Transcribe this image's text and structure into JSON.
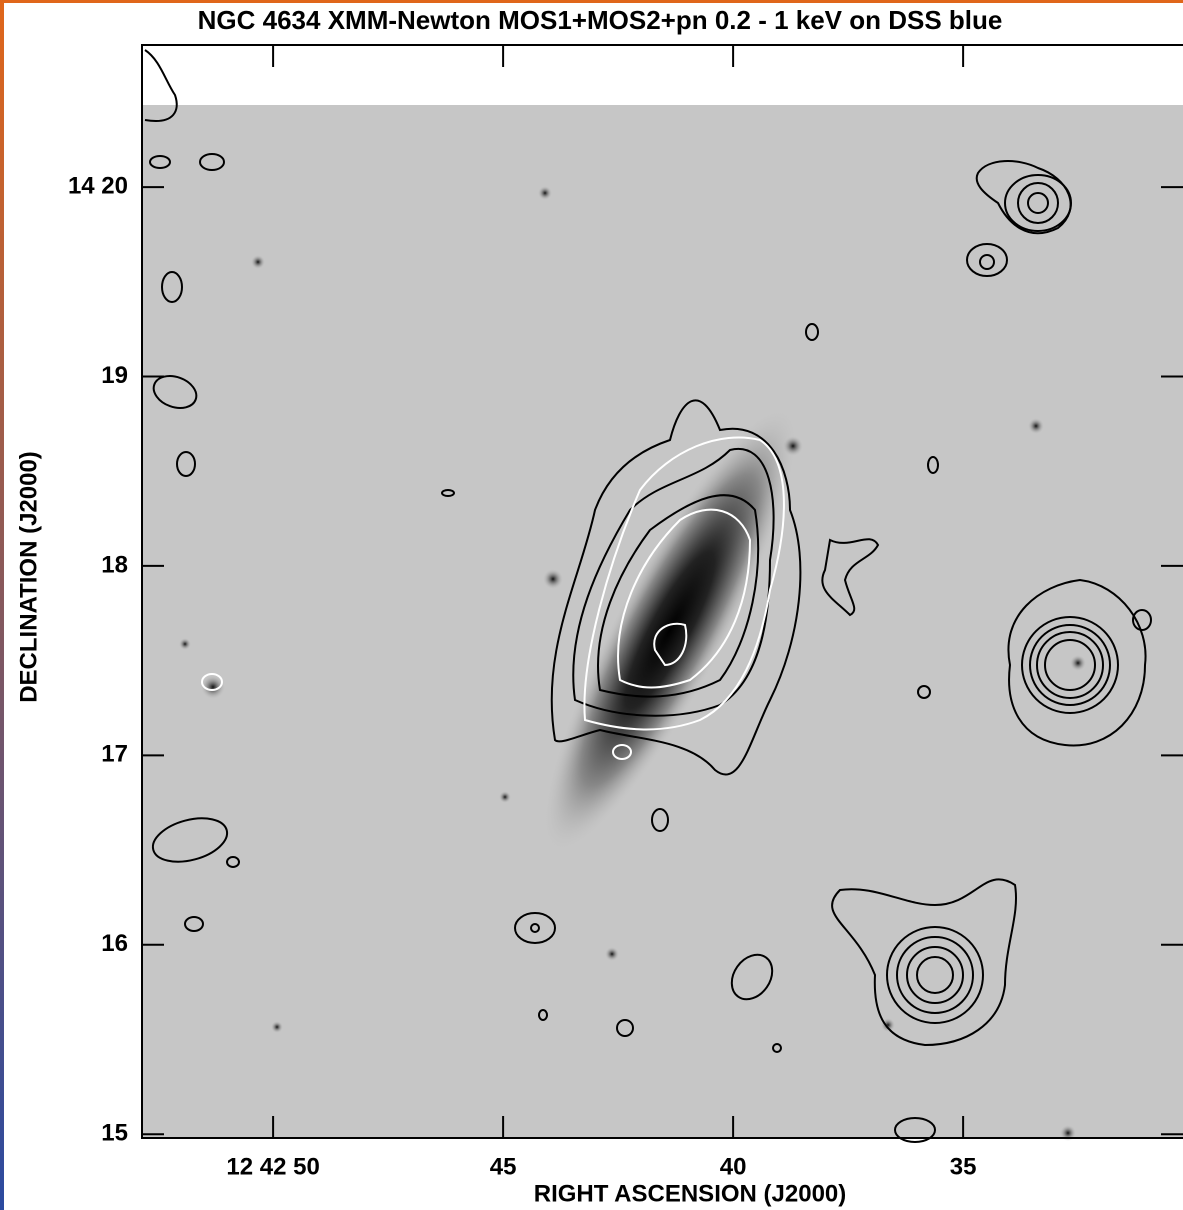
{
  "chart_data": {
    "type": "contour-image",
    "title": "NGC 4634 XMM-Newton MOS1+MOS2+pn 0.2 - 1 keV on DSS blue",
    "x_label": "RIGHT ASCENSION (J2000)",
    "y_label": "DECLINATION (J2000)",
    "xlim": [
      52.85,
      30.22
    ],
    "xticks": [
      {
        "value": 50,
        "label": "12 42 50"
      },
      45,
      40,
      35
    ],
    "ylim": [
      14.98,
      20.75
    ],
    "yticks": [
      {
        "value": 20,
        "label": "14 20"
      },
      19,
      18,
      17,
      16,
      15
    ]
  }
}
